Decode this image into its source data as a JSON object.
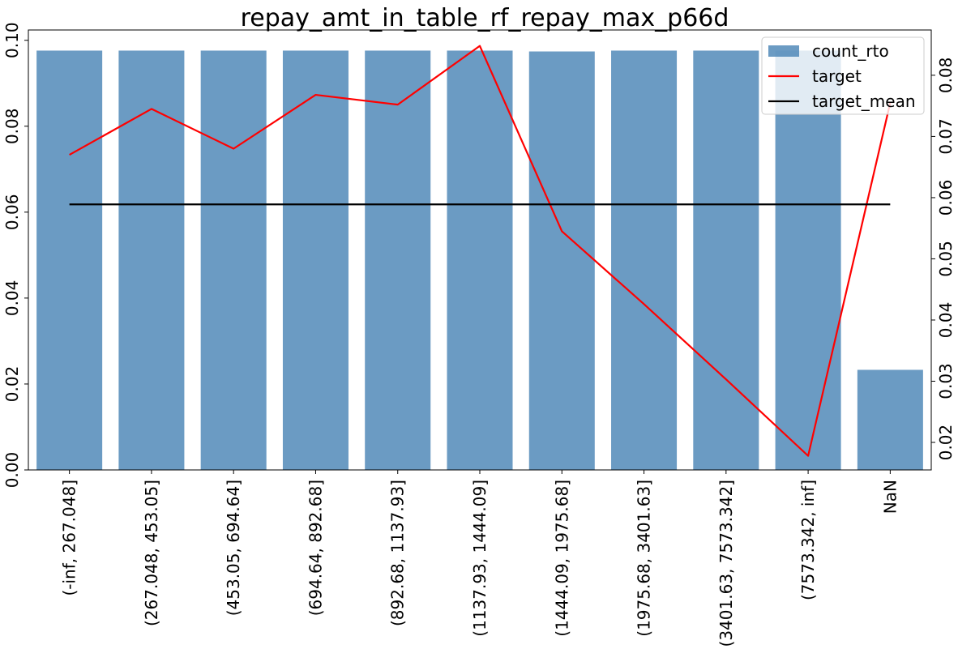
{
  "chart_data": {
    "type": "bar",
    "title": "repay_amt_in_table_rf_repay_max_p66d",
    "categories": [
      "(-inf, 267.048]",
      "(267.048, 453.05]",
      "(453.05, 694.64]",
      "(694.64, 892.68]",
      "(892.68, 1137.93]",
      "(1137.93, 1444.09]",
      "(1444.09, 1975.68]",
      "(1975.68, 3401.63]",
      "(3401.63, 7573.342]",
      "(7573.342, inf]",
      "NaN"
    ],
    "series": [
      {
        "name": "count_rto",
        "type": "bar",
        "axis": "left",
        "color": "#4682b4",
        "values": [
          0.0976,
          0.0976,
          0.0976,
          0.0976,
          0.0976,
          0.0976,
          0.0974,
          0.0976,
          0.0976,
          0.0976,
          0.0233
        ]
      },
      {
        "name": "target",
        "type": "line",
        "axis": "right",
        "color": "#ff0000",
        "values": [
          0.067,
          0.0745,
          0.068,
          0.0768,
          0.0752,
          0.0848,
          0.0545,
          0.0426,
          0.0303,
          0.0178,
          0.0755
        ]
      },
      {
        "name": "target_mean",
        "type": "line",
        "axis": "right",
        "color": "#000000",
        "values": [
          0.0589,
          0.0589,
          0.0589,
          0.0589,
          0.0589,
          0.0589,
          0.0589,
          0.0589,
          0.0589,
          0.0589,
          0.0589
        ]
      }
    ],
    "y_left": {
      "ylim": [
        0,
        0.1024
      ],
      "ticks": [
        0.0,
        0.02,
        0.04,
        0.06,
        0.08,
        0.1
      ],
      "tick_labels": [
        "0.00",
        "0.02",
        "0.04",
        "0.06",
        "0.08",
        "0.10"
      ]
    },
    "y_right": {
      "ylim": [
        0.0155,
        0.0874
      ],
      "ticks": [
        0.02,
        0.03,
        0.04,
        0.05,
        0.06,
        0.07,
        0.08
      ],
      "tick_labels": [
        "0.02",
        "0.03",
        "0.04",
        "0.05",
        "0.06",
        "0.07",
        "0.08"
      ]
    },
    "legend": {
      "placement": "top-right",
      "entries": [
        "count_rto",
        "target",
        "target_mean"
      ]
    },
    "grid": false,
    "xlabel": "",
    "ylabel": ""
  }
}
